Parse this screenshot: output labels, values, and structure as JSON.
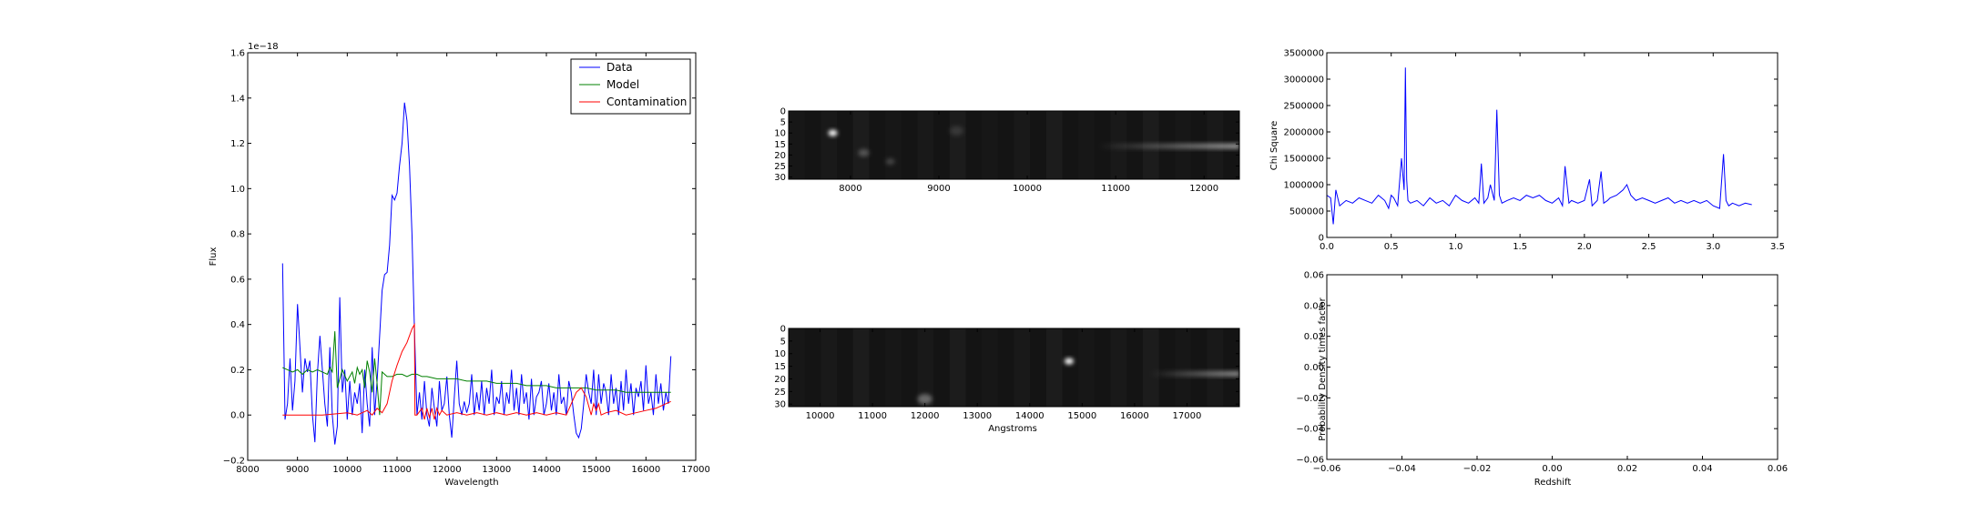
{
  "chart_data": [
    {
      "type": "line",
      "xlabel": "Wavelength",
      "ylabel": "Flux",
      "offset_text": "1e−18",
      "xlim": [
        8000,
        17000
      ],
      "ylim": [
        -0.2,
        1.6
      ],
      "xticks": [
        8000,
        9000,
        10000,
        11000,
        12000,
        13000,
        14000,
        15000,
        16000,
        17000
      ],
      "yticks": [
        -0.2,
        0.0,
        0.2,
        0.4,
        0.6,
        0.8,
        1.0,
        1.2,
        1.4,
        1.6
      ],
      "ytick_labels": [
        "−0.2",
        "0.0",
        "0.2",
        "0.4",
        "0.6",
        "0.8",
        "1.0",
        "1.2",
        "1.4",
        "1.6"
      ],
      "legend_position": "top-right",
      "series": [
        {
          "name": "Data",
          "color": "#0000ff",
          "x": [
            8700,
            8750,
            8800,
            8850,
            8900,
            8950,
            9000,
            9050,
            9100,
            9150,
            9200,
            9250,
            9300,
            9350,
            9400,
            9450,
            9500,
            9550,
            9600,
            9650,
            9700,
            9750,
            9800,
            9850,
            9900,
            9950,
            10000,
            10050,
            10100,
            10150,
            10200,
            10250,
            10300,
            10350,
            10400,
            10450,
            10500,
            10550,
            10600,
            10650,
            10700,
            10750,
            10800,
            10850,
            10900,
            10950,
            11000,
            11050,
            11100,
            11150,
            11200,
            11250,
            11300,
            11350
          ],
          "y": [
            0.67,
            -0.02,
            0.05,
            0.25,
            0.02,
            0.15,
            0.49,
            0.3,
            0.1,
            0.25,
            0.19,
            0.24,
            0.0,
            -0.12,
            0.18,
            0.35,
            0.2,
            0.05,
            -0.05,
            0.3,
            0.0,
            -0.13,
            -0.05,
            0.52,
            0.1,
            0.2,
            -0.02,
            0.15,
            0.0,
            0.1,
            0.05,
            0.14,
            -0.08,
            0.2,
            0.05,
            -0.05,
            0.3,
            0.0,
            0.15,
            0.35,
            0.55,
            0.62,
            0.63,
            0.75,
            0.97,
            0.95,
            0.98,
            1.1,
            1.2,
            1.38,
            1.3,
            1.1,
            0.8,
            0.38
          ]
        },
        {
          "name": "Data",
          "color": "#0000ff",
          "x": [
            11350,
            11400,
            11450,
            11500,
            11550,
            11600,
            11650,
            11700,
            11750,
            11800,
            11850,
            11900,
            11950,
            12000,
            12050,
            12100,
            12150,
            12200,
            12250,
            12300,
            12350,
            12400,
            12450,
            12500,
            12550,
            12600,
            12650,
            12700,
            12750,
            12800,
            12850,
            12900,
            12950,
            13000,
            13050,
            13100,
            13150,
            13200,
            13250,
            13300,
            13350,
            13400,
            13450,
            13500,
            13550,
            13600,
            13650,
            13700,
            13750,
            13800,
            13850,
            13900,
            13950,
            14000,
            14050,
            14100,
            14150,
            14200,
            14250,
            14300,
            14350,
            14400,
            14450,
            14500,
            14550,
            14600,
            14650,
            14700,
            14750,
            14800,
            14850,
            14900,
            14950,
            15000,
            15050,
            15100,
            15150,
            15200,
            15250,
            15300,
            15350,
            15400,
            15450,
            15500,
            15550,
            15600,
            15650,
            15700,
            15750,
            15800,
            15850,
            15900,
            15950,
            16000,
            16050,
            16100,
            16150,
            16200,
            16250,
            16300,
            16350,
            16400,
            16450,
            16500
          ],
          "y": [
            0.38,
            0.0,
            0.1,
            -0.02,
            0.15,
            0.0,
            -0.05,
            0.12,
            0.03,
            -0.05,
            0.15,
            0.02,
            0.05,
            0.17,
            0.0,
            -0.1,
            0.08,
            0.24,
            0.05,
            0.0,
            0.06,
            0.01,
            0.05,
            0.18,
            0.0,
            0.1,
            0.02,
            0.15,
            0.0,
            0.12,
            0.05,
            0.2,
            0.0,
            0.08,
            0.05,
            0.15,
            0.0,
            0.1,
            0.05,
            0.2,
            0.02,
            0.12,
            0.0,
            0.18,
            0.05,
            0.1,
            -0.02,
            0.16,
            0.0,
            0.08,
            0.1,
            0.15,
            0.0,
            0.05,
            0.14,
            0.02,
            0.1,
            0.0,
            0.18,
            0.05,
            0.08,
            0.0,
            0.15,
            0.1,
            0.0,
            -0.08,
            -0.1,
            -0.06,
            0.05,
            0.18,
            0.1,
            0.05,
            0.2,
            0.0,
            0.18,
            0.05,
            0.14,
            0.1,
            0.0,
            0.18,
            0.05,
            0.12,
            0.0,
            0.15,
            0.02,
            0.2,
            0.05,
            0.14,
            0.0,
            0.12,
            0.08,
            0.15,
            0.02,
            0.22,
            0.05,
            0.1,
            0.0,
            0.18,
            0.05,
            0.14,
            0.02,
            0.1,
            0.05,
            0.26
          ]
        },
        {
          "name": "Model",
          "color": "#008000",
          "x": [
            8700,
            8800,
            8900,
            9000,
            9100,
            9200,
            9300,
            9400,
            9500,
            9600,
            9650,
            9700,
            9750,
            9800,
            9900,
            10000,
            10100,
            10150,
            10200,
            10250,
            10300,
            10350,
            10400,
            10450,
            10500,
            10550,
            10600,
            10650,
            10700,
            10750,
            10800,
            10900,
            11000,
            11100,
            11200,
            11300,
            11400,
            11500,
            11600,
            11800,
            12000,
            12200,
            12400,
            12600,
            12800,
            13000,
            13200,
            13400,
            13600,
            13800,
            14000,
            14200,
            14400,
            14600,
            14800,
            15000,
            15200,
            15400,
            15600,
            15800,
            16000,
            16200,
            16400,
            16500
          ],
          "y": [
            0.21,
            0.2,
            0.19,
            0.2,
            0.18,
            0.2,
            0.19,
            0.2,
            0.19,
            0.18,
            0.21,
            0.19,
            0.37,
            0.12,
            0.2,
            0.15,
            0.19,
            0.14,
            0.21,
            0.18,
            0.2,
            0.12,
            0.24,
            0.19,
            0.1,
            0.25,
            0.14,
            0.0,
            0.19,
            0.18,
            0.17,
            0.17,
            0.18,
            0.18,
            0.17,
            0.18,
            0.18,
            0.17,
            0.17,
            0.16,
            0.16,
            0.16,
            0.15,
            0.15,
            0.15,
            0.14,
            0.14,
            0.14,
            0.13,
            0.13,
            0.13,
            0.12,
            0.12,
            0.12,
            0.12,
            0.11,
            0.11,
            0.11,
            0.1,
            0.1,
            0.1,
            0.1,
            0.1,
            0.1
          ]
        },
        {
          "name": "Contamination",
          "color": "#ff0000",
          "x": [
            8700,
            9000,
            9500,
            10000,
            10200,
            10400,
            10500,
            10600,
            10700,
            10800,
            10900,
            11000,
            11100,
            11200,
            11300,
            11350,
            11360,
            11400,
            11500,
            11550,
            11600,
            11650,
            11700,
            11750,
            11800,
            11850,
            11900,
            12000,
            12200,
            12400,
            12600,
            12800,
            13000,
            13200,
            13400,
            13600,
            13800,
            14000,
            14200,
            14400,
            14600,
            14700,
            14800,
            14900,
            14950,
            15000,
            15050,
            15100,
            15200,
            15400,
            15600,
            15800,
            16000,
            16200,
            16400,
            16500
          ],
          "y": [
            0.0,
            0.0,
            0.0,
            0.01,
            0.0,
            0.02,
            0.0,
            0.03,
            0.01,
            0.05,
            0.15,
            0.22,
            0.28,
            0.32,
            0.38,
            0.4,
            0.0,
            0.0,
            0.03,
            -0.02,
            0.03,
            -0.01,
            0.03,
            -0.02,
            0.03,
            0.0,
            0.02,
            0.0,
            0.01,
            0.0,
            0.01,
            0.0,
            0.01,
            0.0,
            0.01,
            0.0,
            0.01,
            0.0,
            0.01,
            0.0,
            0.1,
            0.12,
            0.08,
            0.0,
            0.05,
            0.02,
            0.05,
            0.0,
            0.01,
            0.02,
            0.0,
            0.01,
            0.02,
            0.03,
            0.05,
            0.06
          ]
        }
      ]
    },
    {
      "type": "heatmap",
      "xlim": [
        7300,
        12400
      ],
      "ylim": [
        31,
        0
      ],
      "xticks": [
        8000,
        9000,
        10000,
        11000,
        12000
      ],
      "yticks": [
        0,
        5,
        10,
        15,
        20,
        25,
        30
      ],
      "spots": [
        {
          "x": 7800,
          "y": 10,
          "intensity": 1.0,
          "size": 1.0
        },
        {
          "x": 8150,
          "y": 19,
          "intensity": 0.25,
          "size": 1.2
        },
        {
          "x": 8450,
          "y": 23,
          "intensity": 0.2,
          "size": 1.0
        },
        {
          "x": 9200,
          "y": 9,
          "intensity": 0.12,
          "size": 1.5
        }
      ],
      "trace": {
        "x_start": 10800,
        "x_end": 12400,
        "y": 16,
        "intensity": 0.55
      }
    },
    {
      "type": "heatmap",
      "xlabel": "Angstroms",
      "xlim": [
        9400,
        18000
      ],
      "ylim": [
        31,
        0
      ],
      "xticks": [
        10000,
        11000,
        12000,
        13000,
        14000,
        15000,
        16000,
        17000
      ],
      "yticks": [
        0,
        5,
        10,
        15,
        20,
        25,
        30
      ],
      "spots": [
        {
          "x": 14750,
          "y": 13,
          "intensity": 1.0,
          "size": 1.0
        },
        {
          "x": 12000,
          "y": 28,
          "intensity": 0.35,
          "size": 1.6
        }
      ],
      "trace": {
        "x_start": 16300,
        "x_end": 18000,
        "y": 18,
        "intensity": 0.5
      }
    },
    {
      "type": "line",
      "ylabel": "Chi Square",
      "xlim": [
        0.0,
        3.5
      ],
      "ylim": [
        0,
        3500000
      ],
      "xticks": [
        0.0,
        0.5,
        1.0,
        1.5,
        2.0,
        2.5,
        3.0,
        3.5
      ],
      "xtick_labels": [
        "0.0",
        "0.5",
        "1.0",
        "1.5",
        "2.0",
        "2.5",
        "3.0",
        "3.5"
      ],
      "yticks": [
        0,
        500000,
        1000000,
        1500000,
        2000000,
        2500000,
        3000000,
        3500000
      ],
      "series": [
        {
          "color": "#0000ff",
          "x": [
            0.0,
            0.03,
            0.05,
            0.07,
            0.1,
            0.15,
            0.2,
            0.25,
            0.3,
            0.35,
            0.4,
            0.45,
            0.48,
            0.5,
            0.52,
            0.55,
            0.58,
            0.6,
            0.61,
            0.62,
            0.63,
            0.65,
            0.7,
            0.75,
            0.8,
            0.85,
            0.9,
            0.95,
            1.0,
            1.05,
            1.1,
            1.15,
            1.18,
            1.2,
            1.22,
            1.25,
            1.27,
            1.3,
            1.32,
            1.34,
            1.36,
            1.4,
            1.45,
            1.5,
            1.55,
            1.6,
            1.65,
            1.7,
            1.75,
            1.8,
            1.83,
            1.85,
            1.88,
            1.9,
            1.95,
            2.0,
            2.04,
            2.06,
            2.1,
            2.13,
            2.15,
            2.18,
            2.2,
            2.25,
            2.3,
            2.33,
            2.36,
            2.38,
            2.4,
            2.45,
            2.5,
            2.55,
            2.6,
            2.65,
            2.7,
            2.75,
            2.8,
            2.85,
            2.9,
            2.95,
            3.0,
            3.05,
            3.08,
            3.1,
            3.12,
            3.15,
            3.2,
            3.25,
            3.3
          ],
          "y": [
            800000,
            750000,
            250000,
            900000,
            600000,
            700000,
            650000,
            750000,
            700000,
            650000,
            800000,
            700000,
            550000,
            800000,
            750000,
            600000,
            1500000,
            900000,
            3220000,
            1100000,
            700000,
            650000,
            700000,
            600000,
            750000,
            650000,
            700000,
            600000,
            800000,
            700000,
            650000,
            750000,
            650000,
            1400000,
            650000,
            750000,
            1000000,
            700000,
            2420000,
            800000,
            650000,
            700000,
            750000,
            700000,
            800000,
            750000,
            800000,
            700000,
            650000,
            750000,
            600000,
            1350000,
            650000,
            700000,
            650000,
            700000,
            1100000,
            600000,
            700000,
            1250000,
            650000,
            700000,
            750000,
            800000,
            900000,
            1000000,
            800000,
            750000,
            700000,
            750000,
            700000,
            650000,
            700000,
            750000,
            650000,
            700000,
            650000,
            700000,
            650000,
            700000,
            600000,
            550000,
            1580000,
            700000,
            600000,
            650000,
            600000,
            650000,
            620000
          ]
        }
      ]
    },
    {
      "type": "line",
      "xlabel": "Redshift",
      "ylabel": "Probability Density times factor",
      "xlim": [
        -0.06,
        0.06
      ],
      "ylim": [
        -0.06,
        0.06
      ],
      "xticks": [
        -0.06,
        -0.04,
        -0.02,
        0.0,
        0.02,
        0.04,
        0.06
      ],
      "xtick_labels": [
        "−0.06",
        "−0.04",
        "−0.02",
        "0.00",
        "0.02",
        "0.04",
        "0.06"
      ],
      "yticks": [
        -0.06,
        -0.04,
        -0.02,
        0.0,
        0.02,
        0.04,
        0.06
      ],
      "ytick_labels": [
        "−0.06",
        "−0.04",
        "−0.02",
        "0.00",
        "0.02",
        "0.04",
        "0.06"
      ],
      "series": []
    }
  ]
}
